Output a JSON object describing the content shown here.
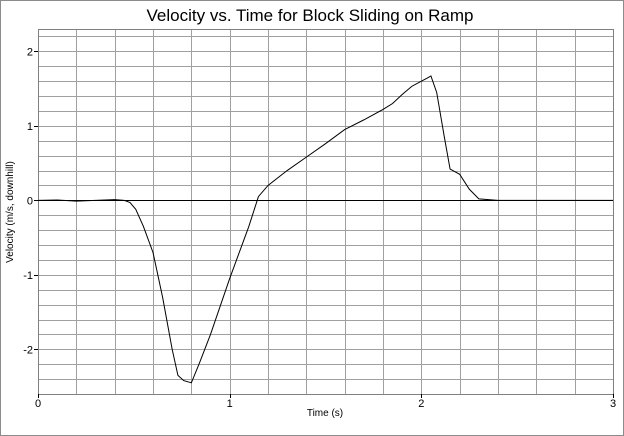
{
  "chart_data": {
    "type": "line",
    "title": "Velocity vs. Time for Block Sliding on Ramp",
    "xlabel": "Time (s)",
    "ylabel": "Velocity (m/s, downhill)",
    "xlim": [
      0,
      3
    ],
    "ylim": [
      -2.6,
      2.3
    ],
    "x_ticks": [
      0,
      1,
      2,
      3
    ],
    "y_ticks": [
      -2,
      -1,
      0,
      1,
      2
    ],
    "x_minor_step": 0.2,
    "y_minor_step": 0.2,
    "grid": true,
    "line_color": "#000000",
    "grid_color": "#a0a0a0",
    "series": [
      {
        "x": [
          0,
          0.1,
          0.2,
          0.3,
          0.4,
          0.45,
          0.48,
          0.51,
          0.55,
          0.6,
          0.65,
          0.7,
          0.73,
          0.76,
          0.8,
          0.84,
          0.9,
          1.0,
          1.1,
          1.15,
          1.2,
          1.3,
          1.4,
          1.5,
          1.6,
          1.7,
          1.75,
          1.8,
          1.85,
          1.9,
          1.95,
          2.0,
          2.03,
          2.05,
          2.08,
          2.12,
          2.15,
          2.2,
          2.25,
          2.3,
          2.4,
          2.6,
          3.0
        ],
        "y": [
          0,
          0.005,
          -0.01,
          0,
          0.01,
          0.0,
          -0.03,
          -0.12,
          -0.35,
          -0.7,
          -1.3,
          -2.0,
          -2.35,
          -2.42,
          -2.45,
          -2.2,
          -1.8,
          -1.05,
          -0.35,
          0.05,
          0.2,
          0.4,
          0.58,
          0.76,
          0.95,
          1.08,
          1.15,
          1.22,
          1.3,
          1.42,
          1.53,
          1.6,
          1.64,
          1.67,
          1.45,
          0.85,
          0.42,
          0.35,
          0.15,
          0.02,
          0.0,
          0.0,
          0.0
        ]
      }
    ]
  }
}
